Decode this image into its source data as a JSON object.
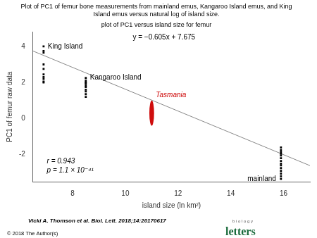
{
  "chart_data": {
    "type": "scatter",
    "title": "Plot of PC1 of femur bone measurements from mainland emus, Kangaroo Island emus, and King\nIsland emus versus natural log of island size.",
    "subtitle": "plot of PC1 versus island size for femur",
    "xlabel": "island size (ln km²)",
    "ylabel": "PC1 of femur raw data",
    "xlim": [
      6.5,
      17.0
    ],
    "ylim": [
      -3.5,
      4.8
    ],
    "xticks": [
      8,
      10,
      12,
      14,
      16
    ],
    "yticks": [
      -2,
      0,
      2,
      4
    ],
    "grid": false,
    "legend": false,
    "series": [
      {
        "name": "y = −0.605x + 7.675",
        "type": "line",
        "color": "#888888",
        "x": [
          6.5,
          17.0
        ],
        "values": [
          3.7425,
          -2.61
        ]
      },
      {
        "name": "King Island",
        "type": "scatter",
        "marker": "square",
        "color": "#000000",
        "x": [
          6.9,
          6.9,
          6.9,
          6.9,
          6.9,
          6.9,
          6.9,
          6.9,
          6.9,
          6.9
        ],
        "values": [
          4.0,
          3.75,
          3.65,
          3.0,
          2.75,
          2.45,
          2.3,
          2.2,
          2.05,
          2.0
        ]
      },
      {
        "name": "Kangaroo Island",
        "type": "scatter",
        "marker": "square",
        "color": "#000000",
        "x": [
          8.5,
          8.5,
          8.5,
          8.5,
          8.5,
          8.5,
          8.5,
          8.5,
          8.5,
          8.5
        ],
        "values": [
          2.25,
          2.1,
          2.0,
          1.95,
          1.85,
          1.75,
          1.6,
          1.5,
          1.35,
          1.2
        ]
      },
      {
        "name": "Tasmania",
        "type": "ellipse",
        "color": "#cc0000",
        "x": [
          11.0
        ],
        "values": [
          0.3
        ],
        "width": [
          0.18
        ],
        "height": [
          1.4
        ]
      },
      {
        "name": "mainland",
        "type": "scatter",
        "marker": "square",
        "color": "#000000",
        "x": [
          15.9,
          15.9,
          15.9,
          15.9,
          15.9,
          15.9,
          15.9,
          15.9,
          15.9,
          15.9,
          15.9,
          15.9,
          15.9,
          15.9
        ],
        "values": [
          -1.6,
          -1.75,
          -1.85,
          -1.95,
          -2.05,
          -2.2,
          -2.35,
          -2.5,
          -2.6,
          -2.75,
          -2.9,
          -3.05,
          -3.2,
          -3.35
        ]
      }
    ],
    "annotations": [
      {
        "text": "r = 0.943"
      },
      {
        "text": "p = 1.1 × 10⁻⁴¹"
      }
    ],
    "source": "Vicki A. Thomson et al. Biol. Lett. 2018;14:20170617",
    "copyright": "© 2018 The Author(s)",
    "logo": [
      {
        "text": "b i o l o g y",
        "color": "#555555"
      },
      {
        "text": "letters",
        "color": "#1a6b3c"
      }
    ]
  }
}
